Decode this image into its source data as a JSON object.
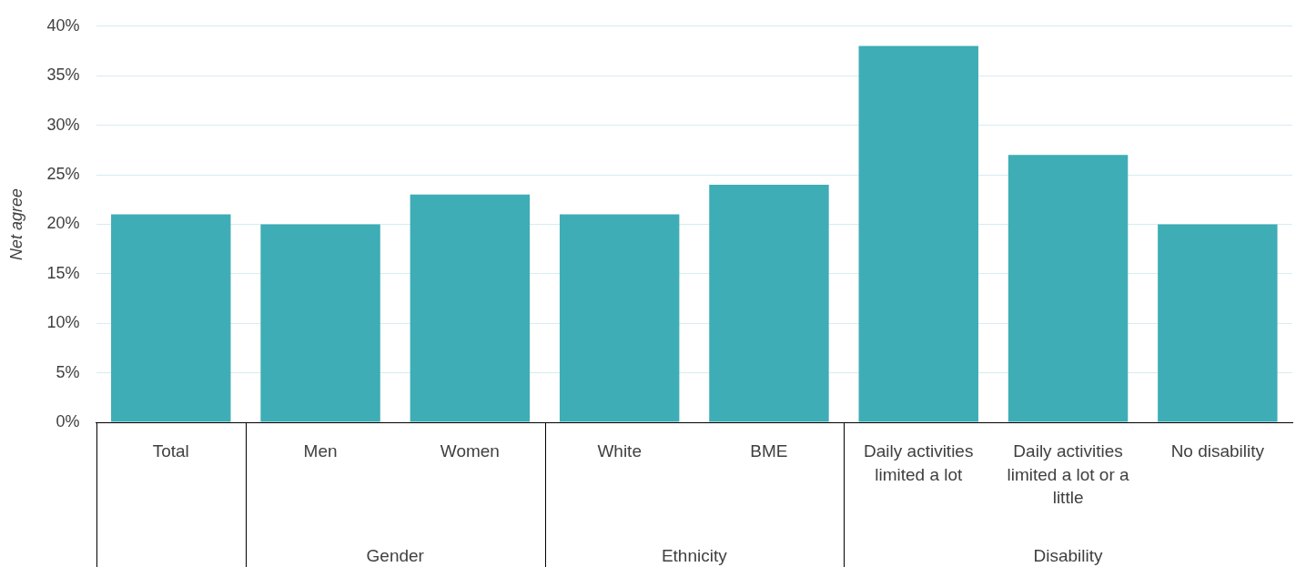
{
  "chart_data": {
    "type": "bar",
    "ylabel": "Net agree",
    "categories": [
      "Total",
      "Men",
      "Women",
      "White",
      "BME",
      "Daily activities limited a lot",
      "Daily activities limited a lot or a little",
      "No disability"
    ],
    "values": [
      21,
      20,
      23,
      21,
      24,
      38,
      27,
      20
    ],
    "color": "#3eadb5",
    "ylim": [
      0,
      40
    ],
    "yticks": [
      {
        "value": 0,
        "label": "0%"
      },
      {
        "value": 5,
        "label": "5%"
      },
      {
        "value": 10,
        "label": "10%"
      },
      {
        "value": 15,
        "label": "15%"
      },
      {
        "value": 20,
        "label": "20%"
      },
      {
        "value": 25,
        "label": "25%"
      },
      {
        "value": 30,
        "label": "30%"
      },
      {
        "value": 35,
        "label": "35%"
      },
      {
        "value": 40,
        "label": "40%"
      }
    ],
    "annotations": [
      "Gender",
      "Ethnicity",
      "Disability"
    ],
    "grid": "y",
    "legend": false
  }
}
